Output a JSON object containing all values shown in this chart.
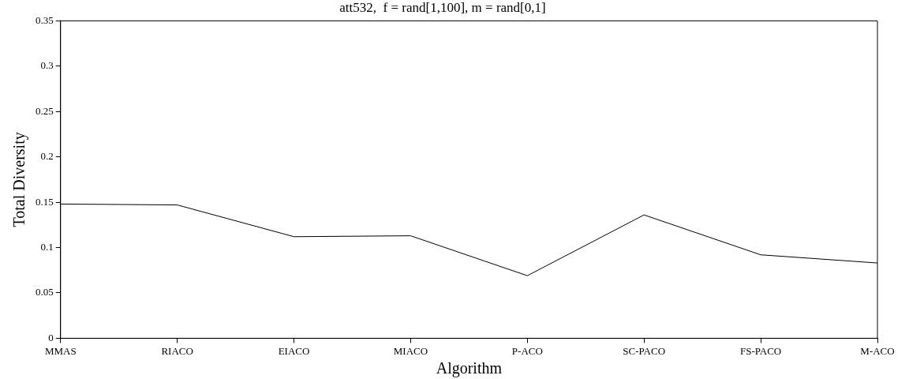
{
  "chart_data": {
    "type": "line",
    "title": "att532,  f = rand[1,100], m = rand[0,1]",
    "xlabel": "Algorithm",
    "ylabel": "Total Diversity",
    "categories": [
      "MMAS",
      "RIACO",
      "EIACO",
      "MIACO",
      "P-ACO",
      "SC-PACO",
      "FS-PACO",
      "M-ACO"
    ],
    "series": [
      {
        "color": "#000000",
        "values": [
          0.148,
          0.147,
          0.112,
          0.113,
          0.069,
          0.136,
          0.092,
          0.083
        ]
      }
    ],
    "ylim": [
      0,
      0.35
    ],
    "yticks": [
      0,
      0.05,
      0.1,
      0.15,
      0.2,
      0.25,
      0.3,
      0.35
    ],
    "grid": false,
    "legend": false,
    "marker": "none",
    "line_style": "solid"
  }
}
